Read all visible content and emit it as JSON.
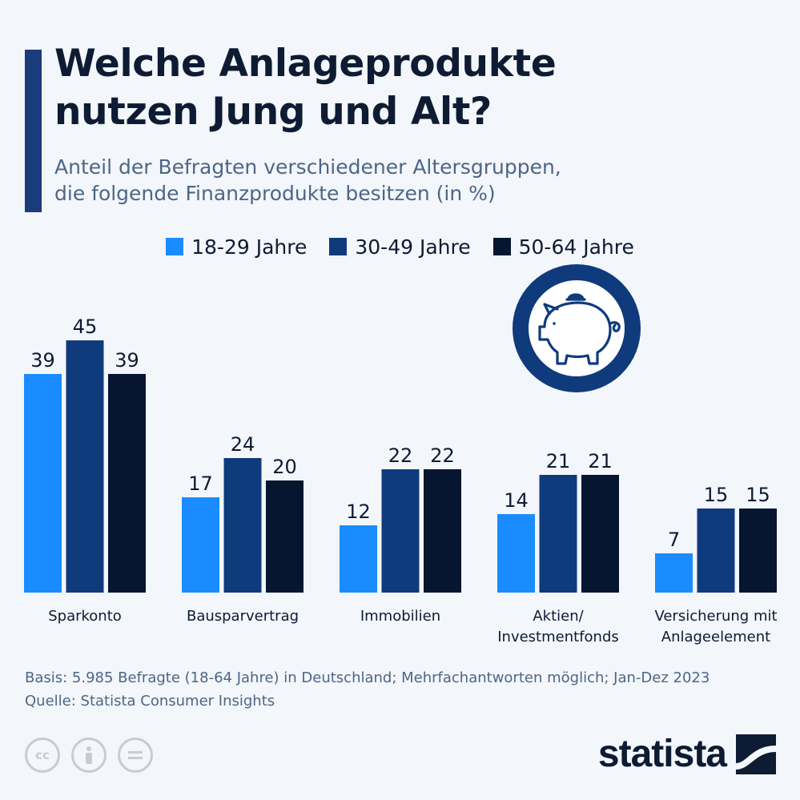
{
  "header": {
    "title_line1": "Welche Anlageprodukte",
    "title_line2": "nutzen Jung und Alt?",
    "subtitle_line1": "Anteil der Befragten verschiedener Altersgruppen,",
    "subtitle_line2": "die folgende Finanzprodukte besitzen (in %)"
  },
  "colors": {
    "s1": "#1a8cff",
    "s2": "#0f3b7d",
    "s3": "#061530",
    "accent": "#1a3b7c",
    "badge_ring": "#0f3b7d"
  },
  "chart_data": {
    "type": "bar",
    "categories": [
      [
        "Sparkonto"
      ],
      [
        "Bausparvertrag"
      ],
      [
        "Immobilien"
      ],
      [
        "Aktien/",
        "Investmentfonds"
      ],
      [
        "Versicherung mit",
        "Anlageelement"
      ]
    ],
    "series": [
      {
        "name": "18-29 Jahre",
        "values": [
          39,
          17,
          12,
          14,
          7
        ]
      },
      {
        "name": "30-49 Jahre",
        "values": [
          45,
          24,
          22,
          21,
          15
        ]
      },
      {
        "name": "50-64 Jahre",
        "values": [
          39,
          20,
          22,
          21,
          15
        ]
      }
    ],
    "ylim": [
      0,
      45
    ],
    "grid": false,
    "legend_placement": "top-center"
  },
  "badge": {
    "icon": "piggy-bank-icon"
  },
  "footer": {
    "basis": "Basis: 5.985 Befragte (18-64 Jahre) in Deutschland; Mehrfachantworten möglich; Jan-Dez 2023",
    "source": "Quelle: Statista Consumer Insights"
  },
  "license_icons": [
    "cc-icon",
    "person-icon",
    "equals-icon"
  ],
  "brand": {
    "name": "statista"
  }
}
